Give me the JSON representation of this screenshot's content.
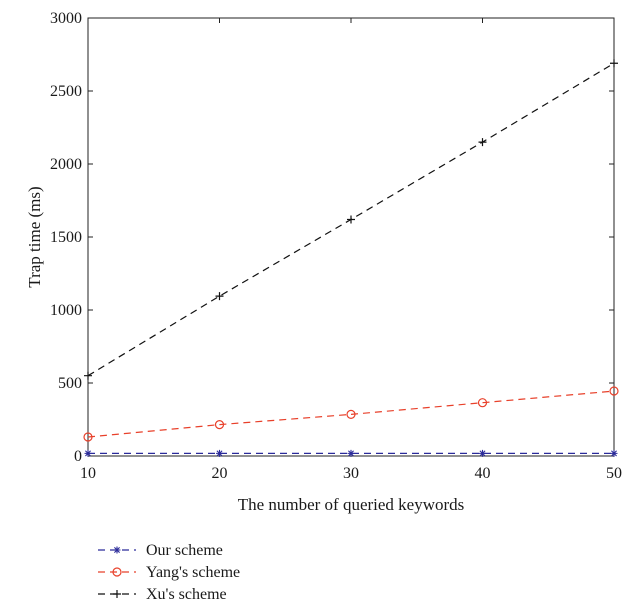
{
  "chart_data": {
    "type": "line",
    "title": "",
    "xlabel": "The number of queried keywords",
    "ylabel": "Trap time (ms)",
    "x": [
      10,
      20,
      30,
      40,
      50
    ],
    "xlim": [
      10,
      50
    ],
    "ylim": [
      0,
      3000
    ],
    "xticks": [
      10,
      20,
      30,
      40,
      50
    ],
    "yticks": [
      0,
      500,
      1000,
      1500,
      2000,
      2500,
      3000
    ],
    "grid": false,
    "legend_position": "below",
    "series": [
      {
        "name": "Our scheme",
        "values": [
          18,
          18,
          18,
          18,
          18
        ],
        "color": "#2b2b9a",
        "marker": "star"
      },
      {
        "name": "Yang's scheme",
        "values": [
          130,
          215,
          285,
          365,
          445
        ],
        "color": "#e8402a",
        "marker": "circle"
      },
      {
        "name": "Xu's scheme",
        "values": [
          550,
          1095,
          1620,
          2150,
          2690
        ],
        "color": "#111111",
        "marker": "plus"
      }
    ]
  }
}
